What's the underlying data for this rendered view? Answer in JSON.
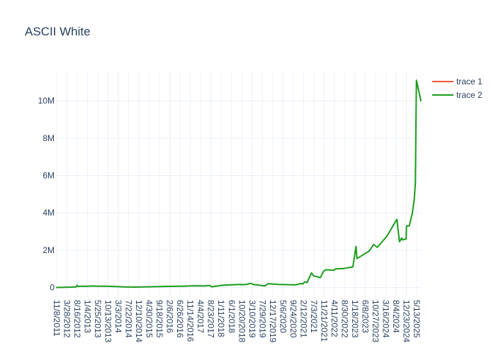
{
  "chart_data": {
    "type": "line",
    "title": "ASCII White",
    "xlabel": "",
    "ylabel": "",
    "x_ticks": [
      "11/8/2011",
      "3/28/2012",
      "8/16/2012",
      "1/4/2013",
      "5/25/2013",
      "10/13/2013",
      "3/3/2014",
      "7/22/2014",
      "12/10/2014",
      "4/30/2015",
      "9/18/2015",
      "2/6/2016",
      "6/26/2016",
      "11/14/2016",
      "4/4/2017",
      "8/23/2017",
      "1/11/2018",
      "6/1/2018",
      "10/20/2018",
      "3/10/2019",
      "7/29/2019",
      "12/17/2019",
      "5/6/2020",
      "9/24/2020",
      "2/12/2021",
      "7/3/2021",
      "11/21/2021",
      "4/11/2022",
      "8/30/2022",
      "1/18/2023",
      "6/8/2023",
      "10/27/2023",
      "3/16/2024",
      "8/4/2024",
      "12/23/2024",
      "5/13/2025"
    ],
    "y_ticks": [
      "0",
      "2M",
      "4M",
      "6M",
      "8M",
      "10M"
    ],
    "y_tick_values": [
      0,
      2000000,
      4000000,
      6000000,
      8000000,
      10000000
    ],
    "xlim": [
      "2011-11-08",
      "2025-07-10"
    ],
    "ylim": [
      -550000,
      11600000
    ],
    "grid": true,
    "legend": {
      "placement": "top-right",
      "entries": [
        "trace 1",
        "trace 2"
      ]
    },
    "series": [
      {
        "name": "trace 1",
        "color": "#EF553B",
        "x": [],
        "y": []
      },
      {
        "name": "trace 2",
        "color": "#1a9c1a",
        "x": [
          "2011-11-08",
          "2012-06-01",
          "2012-08-01",
          "2012-08-15",
          "2012-09-01",
          "2012-10-01",
          "2013-01-01",
          "2013-03-01",
          "2013-06-01",
          "2013-10-01",
          "2014-02-01",
          "2014-06-01",
          "2014-10-01",
          "2015-02-01",
          "2015-06-01",
          "2015-10-01",
          "2016-03-01",
          "2016-08-01",
          "2017-01-01",
          "2017-06-01",
          "2017-08-01",
          "2017-09-01",
          "2018-02-01",
          "2018-06-01",
          "2018-10-01",
          "2018-11-01",
          "2019-01-01",
          "2019-02-15",
          "2019-04-01",
          "2019-09-01",
          "2019-10-15",
          "2020-03-01",
          "2020-09-20",
          "2020-11-01",
          "2021-01-01",
          "2021-02-01",
          "2021-03-01",
          "2021-04-01",
          "2021-06-01",
          "2021-07-01",
          "2021-10-01",
          "2021-11-15",
          "2021-12-15",
          "2022-04-01",
          "2022-05-01",
          "2022-08-20",
          "2022-12-20",
          "2023-02-01",
          "2023-02-15",
          "2023-08-01",
          "2023-10-01",
          "2023-11-20",
          "2024-04-01",
          "2024-08-15",
          "2024-09-20",
          "2024-10-20",
          "2024-11-01",
          "2024-12-20",
          "2024-12-25",
          "2025-02-01",
          "2025-03-15",
          "2025-04-10",
          "2025-04-25",
          "2025-05-01",
          "2025-05-10",
          "2025-07-10"
        ],
        "y": [
          0,
          20000,
          30000,
          120000,
          50000,
          70000,
          60000,
          80000,
          70000,
          70000,
          50000,
          30000,
          20000,
          30000,
          40000,
          50000,
          60000,
          70000,
          90000,
          80000,
          110000,
          40000,
          120000,
          140000,
          160000,
          150000,
          170000,
          220000,
          160000,
          80000,
          200000,
          160000,
          140000,
          140000,
          210000,
          190000,
          300000,
          260000,
          780000,
          620000,
          530000,
          880000,
          950000,
          920000,
          1000000,
          1020000,
          1100000,
          2200000,
          1550000,
          1950000,
          2300000,
          2150000,
          2750000,
          3650000,
          2450000,
          2650000,
          2550000,
          2600000,
          3300000,
          3300000,
          4000000,
          4700000,
          5600000,
          8000000,
          11100000,
          10000000
        ]
      }
    ]
  }
}
